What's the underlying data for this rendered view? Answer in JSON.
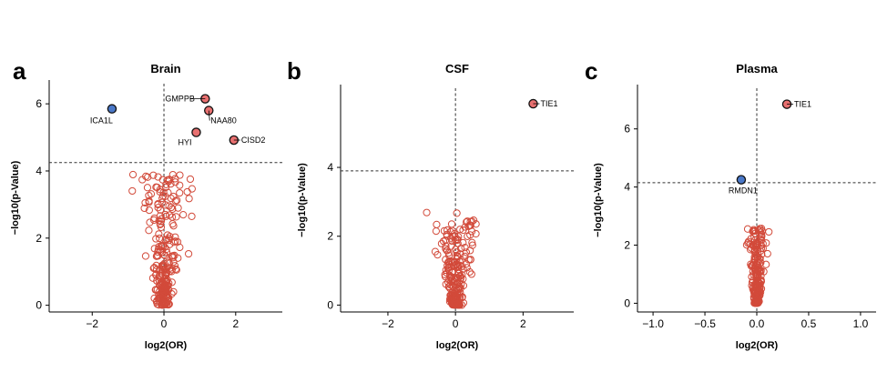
{
  "chart_data": [
    {
      "type": "scatter",
      "panel": "a",
      "title": "Brain",
      "xlabel": "log2(OR)",
      "ylabel": "−log10(p-Value)",
      "xlim": [
        -3.2,
        3.3
      ],
      "ylim": [
        -0.2,
        6.6
      ],
      "xticks": [
        -2,
        0,
        2
      ],
      "yticks": [
        0,
        2,
        4,
        6
      ],
      "threshold_y": 4.25,
      "vline_x": 0,
      "point_color": "#d24a3a",
      "highlight_up_color": "#e87070",
      "highlight_down_color": "#4a78c8",
      "cloud_seed": 11,
      "cloud_count": 260,
      "cloud_ymax": 3.9,
      "cloud_xspread": 1.8,
      "highlighted": [
        {
          "label": "ICA1L",
          "x": -1.45,
          "y": 5.85,
          "dir": "down"
        },
        {
          "label": "GMPPB",
          "x": 1.15,
          "y": 6.15,
          "dir": "up"
        },
        {
          "label": "NAA80",
          "x": 1.25,
          "y": 5.8,
          "dir": "up"
        },
        {
          "label": "HYI",
          "x": 0.9,
          "y": 5.15,
          "dir": "up"
        },
        {
          "label": "CISD2",
          "x": 1.95,
          "y": 4.92,
          "dir": "up"
        }
      ]
    },
    {
      "type": "scatter",
      "panel": "b",
      "title": "CSF",
      "xlabel": "log2(OR)",
      "ylabel": "−log10(p-Value)",
      "xlim": [
        -3.4,
        3.5
      ],
      "ylim": [
        -0.2,
        6.3
      ],
      "xticks": [
        -2,
        0,
        2
      ],
      "yticks": [
        0,
        2,
        4
      ],
      "threshold_y": 3.9,
      "vline_x": 0,
      "point_color": "#d24a3a",
      "highlight_up_color": "#e87070",
      "highlight_down_color": "#4a78c8",
      "cloud_seed": 23,
      "cloud_count": 230,
      "cloud_ymax": 2.7,
      "cloud_xspread": 1.7,
      "highlighted": [
        {
          "label": "TIE1",
          "x": 2.3,
          "y": 5.85,
          "dir": "up"
        }
      ]
    },
    {
      "type": "scatter",
      "panel": "c",
      "title": "Plasma",
      "xlabel": "log2(OR)",
      "ylabel": "−log10(p-Value)",
      "xlim": [
        -1.15,
        1.15
      ],
      "ylim": [
        -0.3,
        7.4
      ],
      "xticks": [
        -1.0,
        -0.5,
        0.0,
        0.5,
        1.0
      ],
      "yticks": [
        0,
        2,
        4,
        6
      ],
      "threshold_y": 4.15,
      "vline_x": 0,
      "point_color": "#d24a3a",
      "highlight_up_color": "#e87070",
      "highlight_down_color": "#4a78c8",
      "cloud_seed": 37,
      "cloud_count": 200,
      "cloud_ymax": 2.6,
      "cloud_xspread": 0.23,
      "highlighted": [
        {
          "label": "TIE1",
          "x": 0.29,
          "y": 6.85,
          "dir": "up"
        },
        {
          "label": "RMDN1",
          "x": -0.15,
          "y": 4.25,
          "dir": "down"
        }
      ]
    }
  ]
}
